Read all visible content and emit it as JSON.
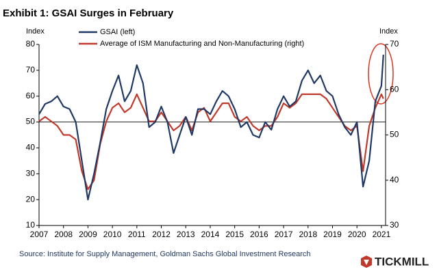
{
  "chart_data": {
    "type": "line",
    "title": "Exhibit 1: GSAI Surges in February",
    "y_label": "Index",
    "y2_label": "Index",
    "source": "Source: Institute for Supply Management, Goldman Sachs Global Investment Research",
    "x": [
      2007,
      2007.25,
      2007.5,
      2007.75,
      2008,
      2008.25,
      2008.5,
      2008.75,
      2009,
      2009.25,
      2009.5,
      2009.75,
      2010,
      2010.25,
      2010.5,
      2010.75,
      2011,
      2011.25,
      2011.5,
      2011.75,
      2012,
      2012.25,
      2012.5,
      2012.75,
      2013,
      2013.25,
      2013.5,
      2013.75,
      2014,
      2014.25,
      2014.5,
      2014.75,
      2015,
      2015.25,
      2015.5,
      2015.75,
      2016,
      2016.25,
      2016.5,
      2016.75,
      2017,
      2017.25,
      2017.5,
      2017.75,
      2018,
      2018.25,
      2018.5,
      2018.75,
      2019,
      2019.25,
      2019.5,
      2019.75,
      2020,
      2020.25,
      2020.5,
      2020.75,
      2021,
      2021.08
    ],
    "series": [
      {
        "name": "GSAI (left)",
        "color": "#1f3864",
        "values": [
          53,
          57,
          58,
          60,
          56,
          55,
          50,
          35,
          20,
          30,
          42,
          55,
          62,
          68,
          58,
          62,
          72,
          65,
          48,
          50,
          56,
          50,
          38,
          45,
          52,
          45,
          55,
          55,
          53,
          58,
          62,
          60,
          55,
          48,
          50,
          45,
          44,
          50,
          47,
          55,
          60,
          56,
          58,
          66,
          70,
          65,
          68,
          62,
          60,
          53,
          48,
          45,
          50,
          25,
          35,
          58,
          64,
          76
        ]
      },
      {
        "name": "Average of ISM Manufacturing and Non-Manufacturing (right)",
        "color": "#c0392b",
        "axis": "y2",
        "values": [
          53,
          54,
          53,
          52,
          50,
          50,
          49,
          42,
          38,
          40,
          48,
          53,
          56,
          57,
          55,
          56,
          59,
          56,
          53,
          53,
          55,
          53,
          51,
          52,
          54,
          51,
          55,
          56,
          53,
          55,
          57,
          57,
          54,
          53,
          54,
          52,
          51,
          52,
          52,
          54,
          57,
          56,
          57,
          59,
          59,
          59,
          59,
          58,
          56,
          54,
          52,
          51,
          52,
          42,
          52,
          56,
          59,
          58
        ]
      }
    ],
    "xlim": [
      2007,
      2021.17
    ],
    "xticks": [
      2007,
      2008,
      2009,
      2010,
      2011,
      2012,
      2013,
      2014,
      2015,
      2016,
      2017,
      2018,
      2019,
      2020,
      2021
    ],
    "ylim": [
      10,
      80
    ],
    "yticks": [
      10,
      20,
      30,
      40,
      50,
      60,
      70,
      80
    ],
    "y2lim": [
      30,
      70
    ],
    "y2ticks": [
      30,
      40,
      50,
      60,
      70
    ],
    "hline": 50
  },
  "logo": "TICKMILL"
}
